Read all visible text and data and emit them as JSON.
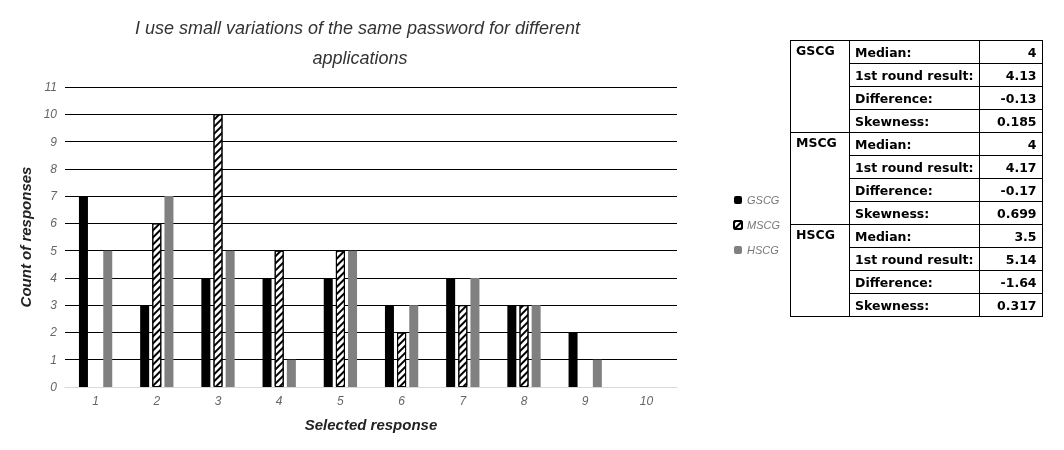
{
  "chart_data": [
    {
      "type": "bar",
      "title": "I use small variations of the same password for different applications",
      "xlabel": "Selected response",
      "ylabel": "Count of responses",
      "categories": [
        "1",
        "2",
        "3",
        "4",
        "5",
        "6",
        "7",
        "8",
        "9",
        "10"
      ],
      "series": [
        {
          "name": "GSCG",
          "color": "#000000",
          "values": [
            7,
            3,
            4,
            4,
            4,
            3,
            4,
            3,
            2,
            0
          ]
        },
        {
          "name": "MSCG",
          "color": "#ffffff",
          "values": [
            0,
            6,
            10,
            5,
            5,
            2,
            3,
            3,
            0,
            0
          ]
        },
        {
          "name": "HSCG",
          "color": "#808080",
          "values": [
            5,
            7,
            5,
            1,
            5,
            3,
            4,
            3,
            1,
            0
          ]
        }
      ],
      "ylim": [
        0,
        11
      ],
      "yticks": [
        0,
        1,
        2,
        3,
        4,
        5,
        6,
        7,
        8,
        9,
        10,
        11
      ],
      "grid": "y",
      "legend": "right"
    },
    {
      "type": "other",
      "annotations": [
        "GSCG",
        "Median:",
        "4",
        "1st round result:",
        "4.13",
        "Difference:",
        "-0.13",
        "Skewness:",
        "0.185",
        "MSCG",
        "Median:",
        "4",
        "1st round result:",
        "4.17",
        "Difference:",
        "-0.17",
        "Skewness:",
        "0.699",
        "HSCG",
        "Median:",
        "3.5",
        "1st round result:",
        "5.14",
        "Difference:",
        "-1.64",
        "Skewness:",
        "0.317"
      ]
    }
  ]
}
